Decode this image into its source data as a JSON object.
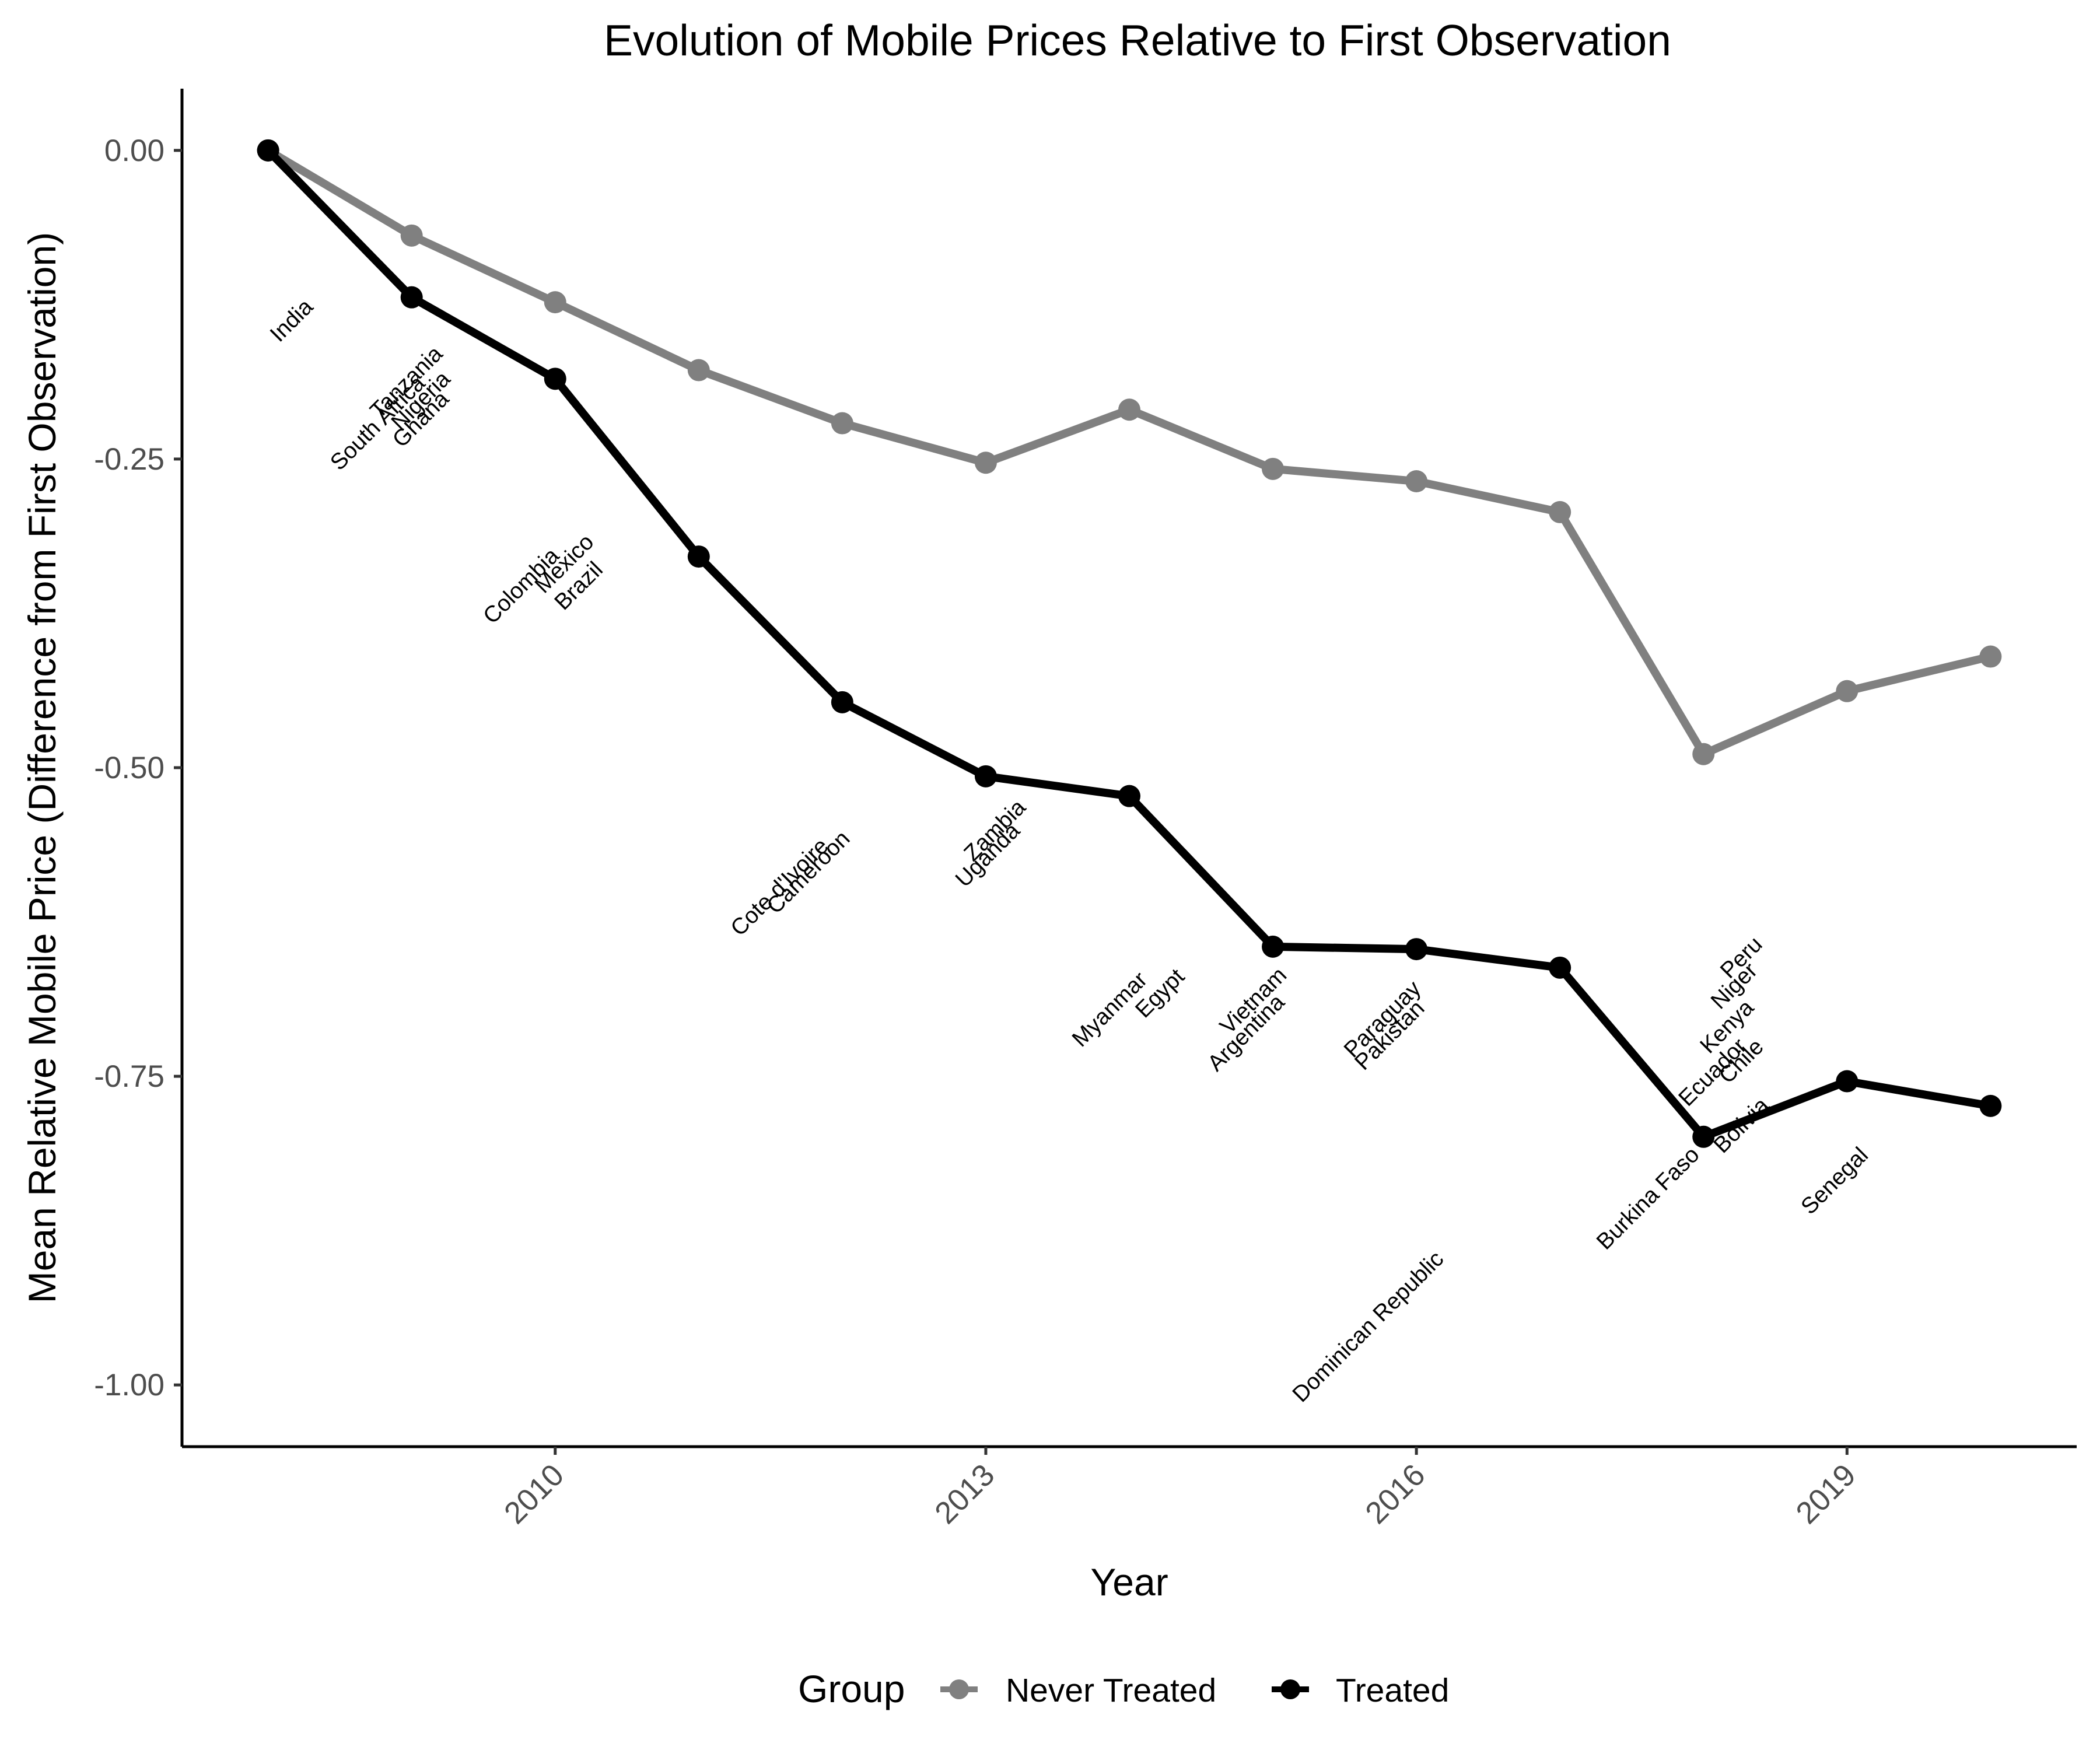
{
  "chart_data": {
    "type": "line",
    "title": "Evolution of Mobile Prices Relative to First Observation",
    "xlabel": "Year",
    "ylabel": "Mean Relative Mobile Price (Difference from First Observation)",
    "xlim": [
      2007.4,
      2020.6
    ],
    "ylim": [
      -1.05,
      0.05
    ],
    "x_ticks": [
      2010,
      2013,
      2016,
      2019
    ],
    "y_ticks": [
      0.0,
      -0.25,
      -0.5,
      -0.75,
      -1.0
    ],
    "y_tick_labels": [
      "0.00",
      "-0.25",
      "-0.50",
      "-0.75",
      "-1.00"
    ],
    "grid": false,
    "x": [
      2008,
      2009,
      2010,
      2011,
      2012,
      2013,
      2014,
      2015,
      2016,
      2017,
      2018,
      2019,
      2020
    ],
    "series": [
      {
        "name": "Never Treated",
        "color": "#808080",
        "values": [
          0.0,
          -0.069,
          -0.123,
          -0.178,
          -0.221,
          -0.253,
          -0.21,
          -0.258,
          -0.268,
          -0.293,
          -0.489,
          -0.438,
          -0.41
        ]
      },
      {
        "name": "Treated",
        "color": "#000000",
        "values": [
          0.0,
          -0.119,
          -0.185,
          -0.329,
          -0.447,
          -0.507,
          -0.523,
          -0.645,
          -0.647,
          -0.662,
          -0.799,
          -0.754,
          -0.774
        ]
      }
    ],
    "annotations": [
      {
        "text": "India",
        "x": 2008.2,
        "y": -0.142
      },
      {
        "text": "Tanzania",
        "x": 2009.0,
        "y": -0.192
      },
      {
        "text": "South Africa",
        "x": 2008.8,
        "y": -0.225
      },
      {
        "text": "Nigeria",
        "x": 2009.1,
        "y": -0.207
      },
      {
        "text": "Ghana",
        "x": 2009.1,
        "y": -0.222
      },
      {
        "text": "Mexico",
        "x": 2010.1,
        "y": -0.339
      },
      {
        "text": "Colombia",
        "x": 2009.8,
        "y": -0.357
      },
      {
        "text": "Brazil",
        "x": 2010.2,
        "y": -0.357
      },
      {
        "text": "Cote d'Ivoire",
        "x": 2011.6,
        "y": -0.601
      },
      {
        "text": "Cameroon",
        "x": 2011.8,
        "y": -0.589
      },
      {
        "text": "Zambia",
        "x": 2013.1,
        "y": -0.555
      },
      {
        "text": "Uganda",
        "x": 2013.05,
        "y": -0.575
      },
      {
        "text": "Myanmar",
        "x": 2013.9,
        "y": -0.7
      },
      {
        "text": "Egypt",
        "x": 2014.25,
        "y": -0.687
      },
      {
        "text": "Vietnam",
        "x": 2014.9,
        "y": -0.693
      },
      {
        "text": "Argentina",
        "x": 2014.85,
        "y": -0.719
      },
      {
        "text": "Paraguay",
        "x": 2015.8,
        "y": -0.708
      },
      {
        "text": "Pakistan",
        "x": 2015.85,
        "y": -0.721
      },
      {
        "text": "Dominican Republic",
        "x": 2015.7,
        "y": -0.957
      },
      {
        "text": "Peru",
        "x": 2018.3,
        "y": -0.658
      },
      {
        "text": "Niger",
        "x": 2018.25,
        "y": -0.681
      },
      {
        "text": "Kenya",
        "x": 2018.2,
        "y": -0.714
      },
      {
        "text": "Chile",
        "x": 2018.3,
        "y": -0.742
      },
      {
        "text": "Ecuador",
        "x": 2018.1,
        "y": -0.751
      },
      {
        "text": "Bolivia",
        "x": 2018.3,
        "y": -0.794
      },
      {
        "text": "Burkina Faso",
        "x": 2017.65,
        "y": -0.853
      },
      {
        "text": "Senegal",
        "x": 2018.95,
        "y": -0.839
      }
    ],
    "legend": {
      "title": "Group",
      "position": "bottom",
      "labels": [
        "Never Treated",
        "Treated"
      ]
    }
  }
}
